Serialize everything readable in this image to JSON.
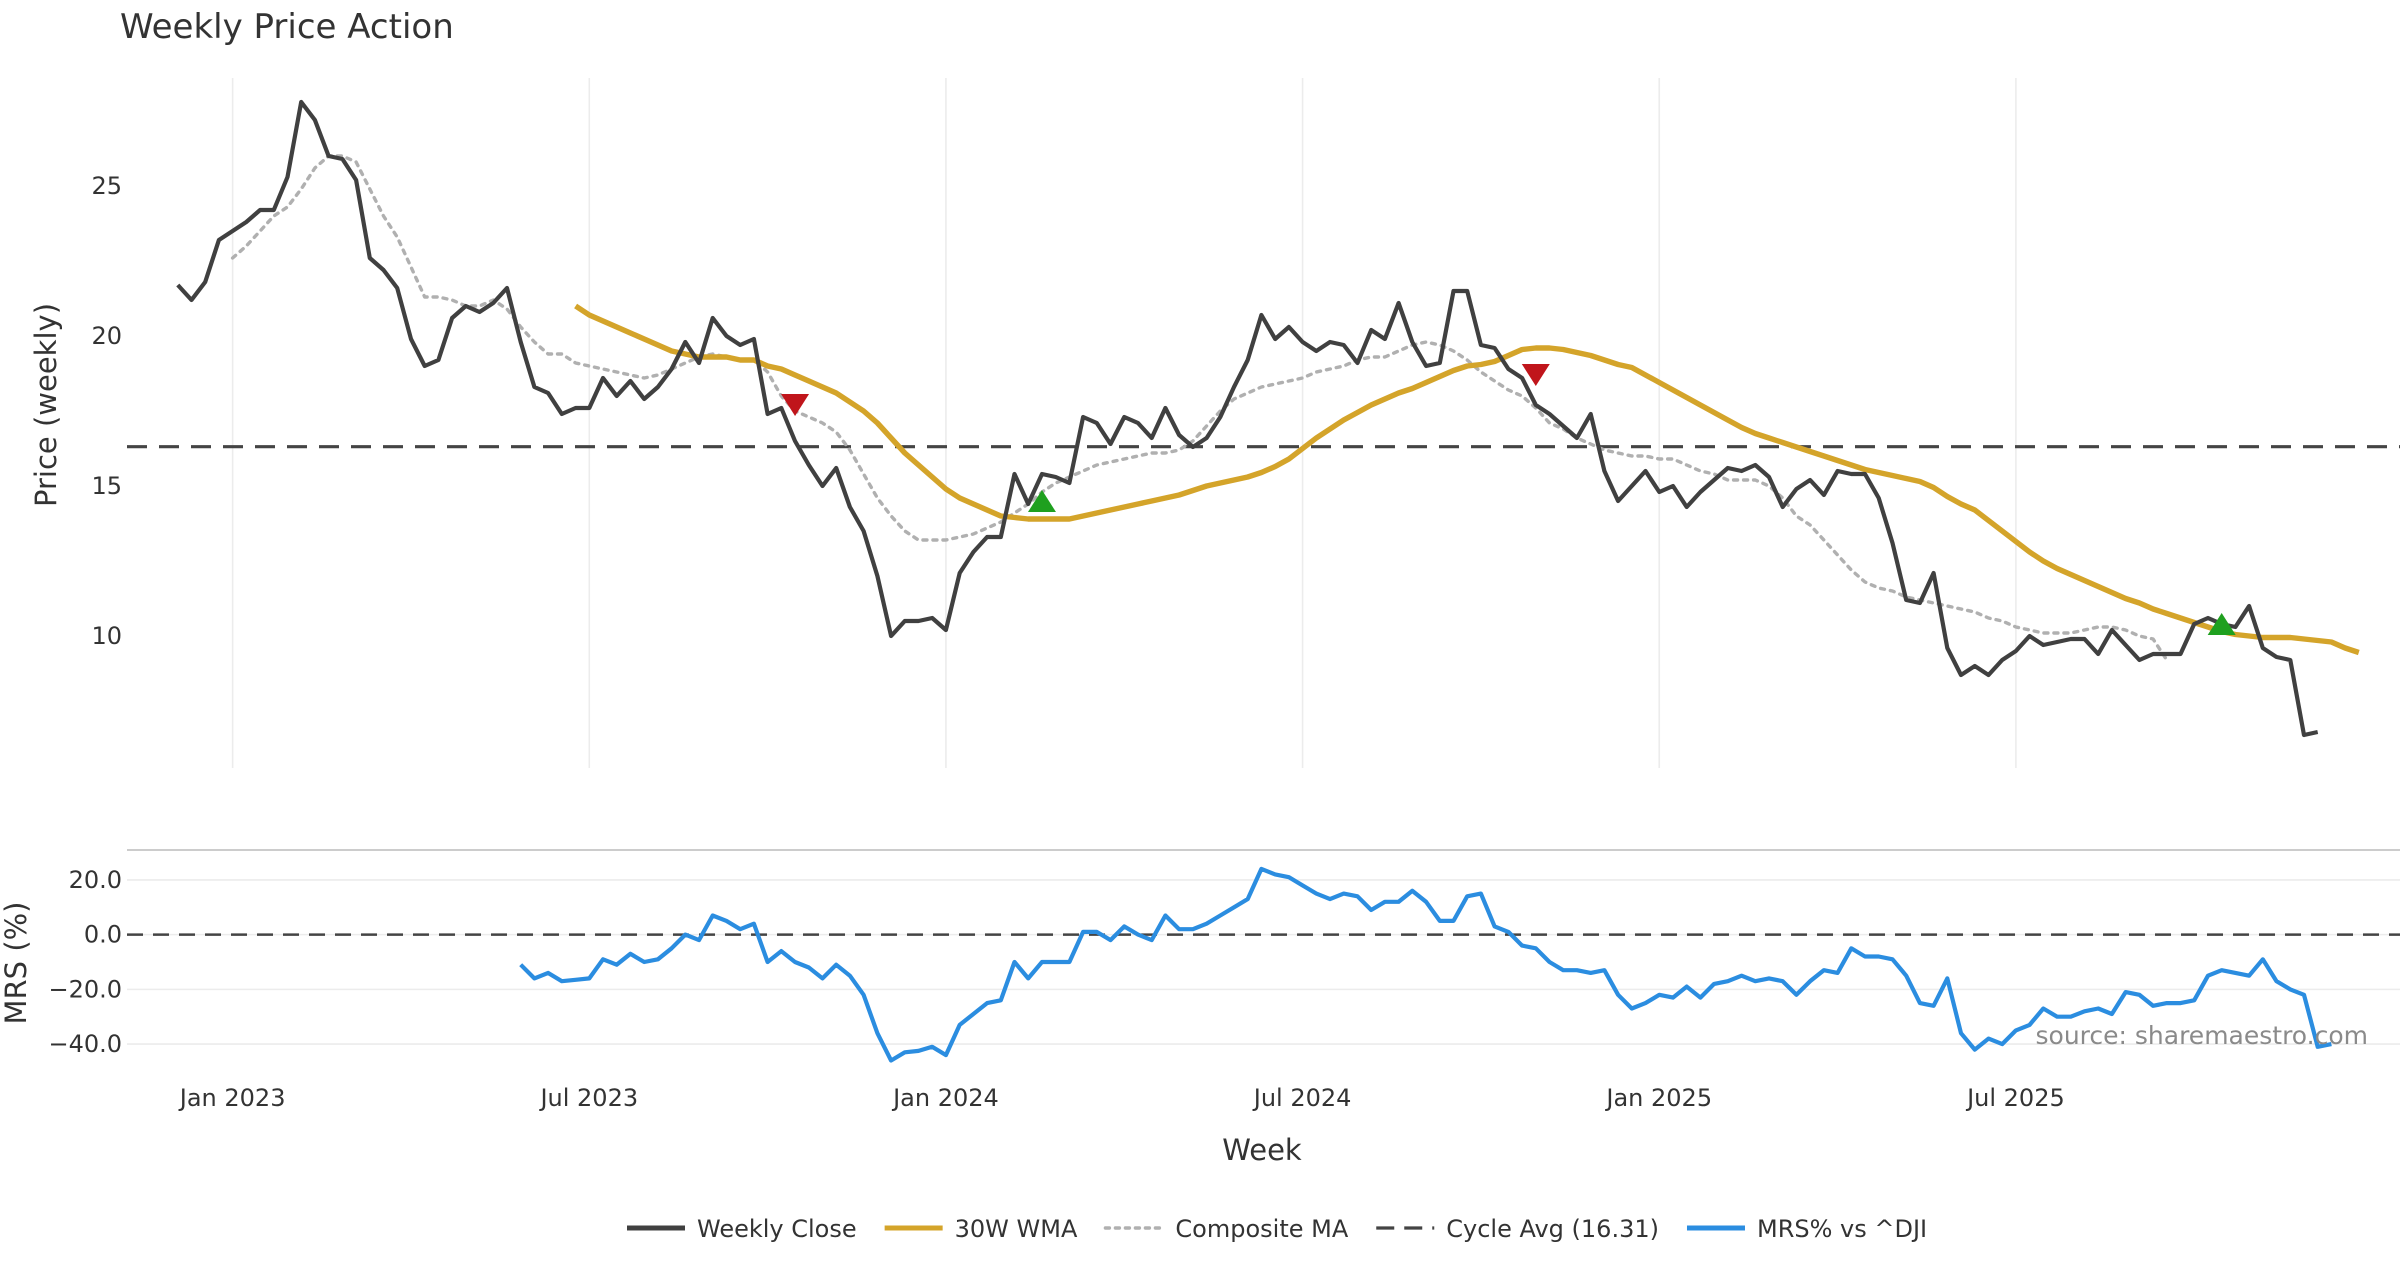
{
  "chart_data": {
    "type": "line",
    "title": "Weekly Price Action",
    "xlabel": "Week",
    "x_ticks": [
      "Jan 2023",
      "Jul 2023",
      "Jan 2024",
      "Jul 2024",
      "Jan 2025",
      "Jul 2025"
    ],
    "x_tick_weeks": [
      4,
      30,
      56,
      82,
      108,
      134
    ],
    "watermark": "source: sharemaestro.com",
    "price_panel": {
      "ylabel": "Price (weekly)",
      "ylim": [
        5.6,
        28.6
      ],
      "yticks": [
        "10",
        "15",
        "20",
        "25"
      ],
      "ytick_values": [
        10,
        15,
        20,
        25
      ],
      "grid": "vertical",
      "x_range": [
        -3.7,
        162
      ],
      "series": [
        {
          "name": "Weekly Close",
          "color": "#404040",
          "style": "solid",
          "start": 0,
          "values": [
            21.7,
            21.2,
            21.8,
            23.2,
            23.5,
            23.8,
            24.2,
            24.2,
            25.3,
            27.8,
            27.2,
            26.0,
            25.9,
            25.2,
            22.6,
            22.2,
            21.6,
            19.9,
            19.0,
            19.2,
            20.6,
            21.0,
            20.8,
            21.1,
            21.6,
            19.8,
            18.3,
            18.1,
            17.4,
            17.6,
            17.6,
            18.6,
            18.0,
            18.5,
            17.9,
            18.3,
            18.9,
            19.8,
            19.1,
            20.6,
            20.0,
            19.7,
            19.9,
            17.4,
            17.6,
            16.5,
            15.7,
            15.0,
            15.6,
            14.3,
            13.5,
            12.0,
            10.0,
            10.5,
            10.5,
            10.6,
            10.2,
            12.1,
            12.8,
            13.3,
            13.3,
            15.4,
            14.4,
            15.4,
            15.3,
            15.1,
            17.3,
            17.1,
            16.4,
            17.3,
            17.1,
            16.6,
            17.6,
            16.7,
            16.3,
            16.6,
            17.3,
            18.3,
            19.2,
            20.7,
            19.9,
            20.3,
            19.8,
            19.5,
            19.8,
            19.7,
            19.1,
            20.2,
            19.9,
            21.1,
            19.8,
            19.0,
            19.1,
            21.5,
            21.5,
            19.7,
            19.6,
            18.9,
            18.6,
            17.7,
            17.4,
            17.0,
            16.6,
            17.4,
            15.5,
            14.5,
            15.0,
            15.5,
            14.8,
            15.0,
            14.3,
            14.8,
            15.2,
            15.6,
            15.5,
            15.7,
            15.3,
            14.3,
            14.9,
            15.2,
            14.7,
            15.5,
            15.4,
            15.4,
            14.6,
            13.1,
            11.2,
            11.1,
            12.1,
            9.6,
            8.7,
            9.0,
            8.7,
            9.2,
            9.5,
            10.0,
            9.7,
            9.8,
            9.9,
            9.9,
            9.4,
            10.2,
            9.7,
            9.2,
            9.4,
            9.4,
            9.4,
            10.4,
            10.6,
            10.4,
            10.3,
            11.0,
            9.6,
            9.3,
            9.2,
            6.7,
            6.8
          ]
        },
        {
          "name": "30W WMA",
          "color": "#d4a42a",
          "style": "solid",
          "start": 29,
          "values": [
            21.0,
            20.7,
            20.5,
            20.3,
            20.1,
            19.9,
            19.7,
            19.5,
            19.4,
            19.3,
            19.3,
            19.3,
            19.2,
            19.2,
            19.0,
            18.9,
            18.7,
            18.5,
            18.3,
            18.1,
            17.8,
            17.5,
            17.1,
            16.6,
            16.1,
            15.7,
            15.3,
            14.9,
            14.6,
            14.4,
            14.2,
            14.0,
            13.95,
            13.9,
            13.9,
            13.9,
            13.9,
            14.0,
            14.1,
            14.2,
            14.3,
            14.4,
            14.5,
            14.6,
            14.7,
            14.85,
            15.0,
            15.1,
            15.2,
            15.3,
            15.45,
            15.65,
            15.9,
            16.25,
            16.6,
            16.9,
            17.2,
            17.45,
            17.7,
            17.9,
            18.1,
            18.25,
            18.45,
            18.65,
            18.85,
            19.0,
            19.05,
            19.15,
            19.35,
            19.55,
            19.6,
            19.6,
            19.55,
            19.45,
            19.35,
            19.2,
            19.05,
            18.95,
            18.7,
            18.45,
            18.2,
            17.95,
            17.7,
            17.45,
            17.2,
            16.95,
            16.75,
            16.6,
            16.45,
            16.3,
            16.15,
            16.0,
            15.85,
            15.7,
            15.55,
            15.45,
            15.35,
            15.25,
            15.15,
            14.95,
            14.65,
            14.4,
            14.2,
            13.85,
            13.5,
            13.15,
            12.8,
            12.5,
            12.25,
            12.05,
            11.85,
            11.65,
            11.45,
            11.25,
            11.1,
            10.9,
            10.75,
            10.6,
            10.45,
            10.3,
            10.15,
            10.05,
            10.0,
            9.95,
            9.95,
            9.95,
            9.9,
            9.85,
            9.8,
            9.6,
            9.45
          ]
        },
        {
          "name": "Composite MA",
          "color": "#b0b0b0",
          "style": "dotted",
          "start": 4,
          "values": [
            22.6,
            23.0,
            23.5,
            24.0,
            24.3,
            24.9,
            25.6,
            26.0,
            26.0,
            25.8,
            24.9,
            24.0,
            23.3,
            22.3,
            21.3,
            21.3,
            21.2,
            21.0,
            21.0,
            21.2,
            20.9,
            20.3,
            19.8,
            19.4,
            19.4,
            19.1,
            19.0,
            18.9,
            18.8,
            18.7,
            18.6,
            18.7,
            18.9,
            19.1,
            19.3,
            19.4,
            19.3,
            19.2,
            19.2,
            18.8,
            18.0,
            17.5,
            17.3,
            17.1,
            16.8,
            16.2,
            15.4,
            14.6,
            14.0,
            13.5,
            13.2,
            13.2,
            13.2,
            13.3,
            13.4,
            13.6,
            13.8,
            14.1,
            14.4,
            14.8,
            15.1,
            15.3,
            15.5,
            15.7,
            15.8,
            15.9,
            16.0,
            16.1,
            16.1,
            16.2,
            16.5,
            17.0,
            17.5,
            17.9,
            18.1,
            18.3,
            18.4,
            18.5,
            18.6,
            18.8,
            18.9,
            19.0,
            19.2,
            19.3,
            19.3,
            19.5,
            19.7,
            19.8,
            19.7,
            19.5,
            19.2,
            18.8,
            18.5,
            18.2,
            18.0,
            17.6,
            17.1,
            16.9,
            16.6,
            16.4,
            16.2,
            16.1,
            16.0,
            16.0,
            15.9,
            15.9,
            15.7,
            15.5,
            15.4,
            15.2,
            15.2,
            15.2,
            15.0,
            14.6,
            14.0,
            13.7,
            13.2,
            12.7,
            12.2,
            11.8,
            11.6,
            11.5,
            11.3,
            11.2,
            11.1,
            11.0,
            10.9,
            10.8,
            10.6,
            10.5,
            10.3,
            10.2,
            10.1,
            10.1,
            10.1,
            10.2,
            10.3,
            10.3,
            10.2,
            10.0,
            9.9,
            9.2
          ]
        },
        {
          "name": "Cycle Avg (16.31)",
          "color": "#444444",
          "style": "dashed",
          "type": "hline",
          "value": 16.31
        }
      ],
      "markers": [
        {
          "type": "sell",
          "color": "#c0151b",
          "week": 45,
          "value": 17.7
        },
        {
          "type": "buy",
          "color": "#1fa01f",
          "week": 63,
          "value": 14.5
        },
        {
          "type": "sell",
          "color": "#c0151b",
          "week": 99,
          "value": 18.7
        },
        {
          "type": "buy",
          "color": "#1fa01f",
          "week": 149,
          "value": 10.4
        }
      ]
    },
    "mrs_panel": {
      "ylabel": "MRS (%)",
      "ylim": [
        -48,
        28
      ],
      "yticks": [
        "20.0",
        "0.0",
        "−20.0",
        "−40.0"
      ],
      "ytick_values": [
        20,
        0,
        -20,
        -40
      ],
      "grid": "horizontal",
      "zero_line": 0,
      "series": [
        {
          "name": "MRS% vs ^DJI",
          "color": "#2b8de0",
          "style": "solid",
          "start": 25,
          "values": [
            -11,
            -16,
            -14,
            -17,
            -16.5,
            -16,
            -9,
            -11,
            -7,
            -10,
            -9,
            -5,
            0,
            -2,
            7,
            5,
            2,
            4,
            -10,
            -6,
            -10,
            -12,
            -16,
            -11,
            -15,
            -22,
            -36,
            -46,
            -43,
            -42.5,
            -41,
            -44,
            -33,
            -29,
            -25,
            -24,
            -10,
            -16,
            -10,
            -10,
            -10,
            1,
            1,
            -2,
            3,
            0,
            -2,
            7,
            2,
            2,
            4,
            7,
            10,
            13,
            24,
            22,
            21,
            18,
            15,
            13,
            15,
            14,
            9,
            12,
            12,
            16,
            12,
            5,
            5,
            14,
            15,
            3,
            1,
            -4,
            -5,
            -10,
            -13,
            -13,
            -14,
            -13,
            -22,
            -27,
            -25,
            -22,
            -23,
            -19,
            -23,
            -18,
            -17,
            -15,
            -17,
            -16,
            -17,
            -22,
            -17,
            -13,
            -14,
            -5,
            -8,
            -8,
            -9,
            -15,
            -25,
            -26,
            -16,
            -36,
            -42,
            -38,
            -40,
            -35,
            -33,
            -27,
            -30,
            -30,
            -28,
            -27,
            -29,
            -21,
            -22,
            -26,
            -25,
            -25,
            -24,
            -15,
            -13,
            -14,
            -15,
            -9,
            -17,
            -20,
            -22,
            -41,
            -40
          ]
        }
      ]
    },
    "legend": {
      "position": "bottom-center",
      "entries": [
        {
          "label": "Weekly Close",
          "color": "#404040",
          "style": "solid"
        },
        {
          "label": "30W WMA",
          "color": "#d4a42a",
          "style": "solid"
        },
        {
          "label": "Composite MA",
          "color": "#b0b0b0",
          "style": "dotted"
        },
        {
          "label": "Cycle Avg (16.31)",
          "color": "#444444",
          "style": "dashed"
        },
        {
          "label": "MRS% vs ^DJI",
          "color": "#2b8de0",
          "style": "solid"
        }
      ]
    }
  }
}
